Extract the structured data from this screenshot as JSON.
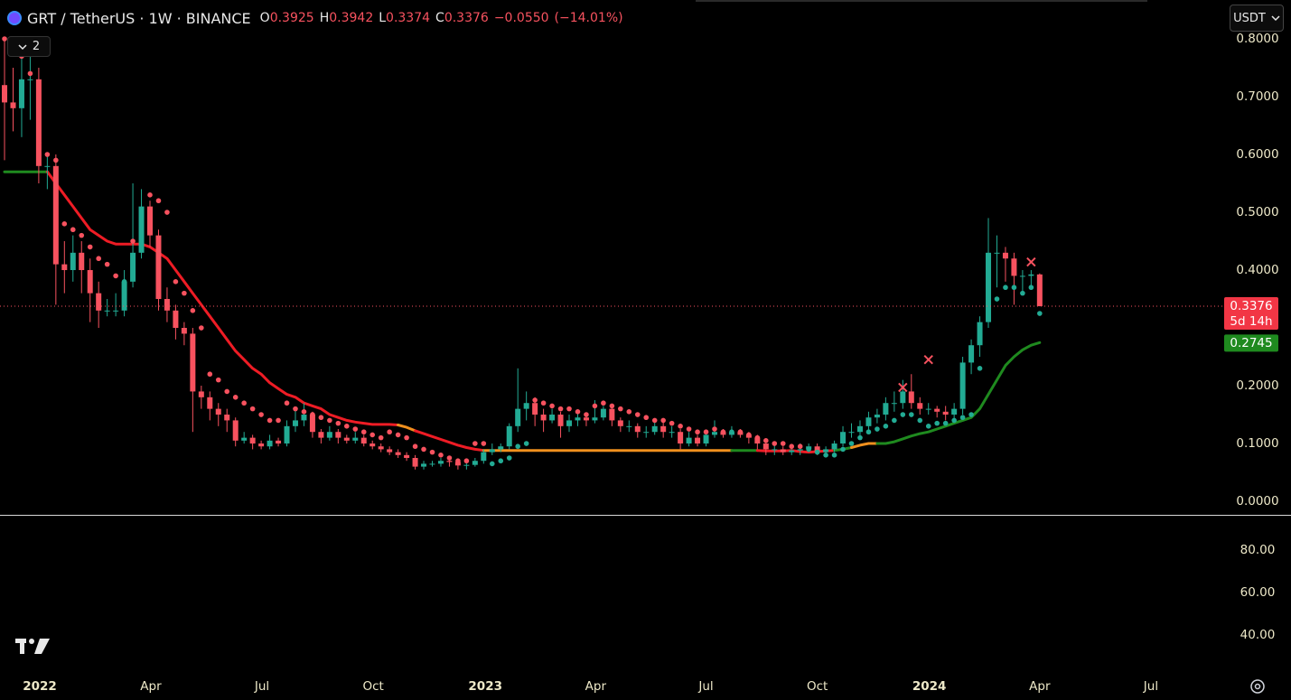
{
  "header": {
    "symbol": "GRT / TetherUS · 1W · BINANCE",
    "ohlc_keys": [
      "O",
      "H",
      "L",
      "C"
    ],
    "change": "−0.0550",
    "change_pct": "(−14.01%)"
  },
  "toolbar": {
    "indicators_count": "2",
    "currency": "USDT"
  },
  "chart_data": [
    {
      "type": "candlestick",
      "up_color": "#22ab94",
      "down_color": "#f7525f",
      "xlim": [
        -0.53,
        142.56
      ],
      "xticks": [
        {
          "value": 4.12,
          "label": "2022"
        },
        {
          "value": 17.1,
          "label": "Apr"
        },
        {
          "value": 30.1,
          "label": "Jul"
        },
        {
          "value": 43.1,
          "label": "Oct"
        },
        {
          "value": 56.2,
          "label": "2023"
        },
        {
          "value": 69.1,
          "label": "Apr"
        },
        {
          "value": 82.0,
          "label": "Jul"
        },
        {
          "value": 95.0,
          "label": "Oct"
        },
        {
          "value": 108.1,
          "label": "2024"
        },
        {
          "value": 121.0,
          "label": "Apr"
        },
        {
          "value": 134.0,
          "label": "Jul"
        }
      ],
      "ylim": [
        -0.0234,
        0.8672
      ],
      "yticks": [
        {
          "value": 0,
          "label": "0.0000"
        },
        {
          "value": 0.1,
          "label": "0.1000"
        },
        {
          "value": 0.2,
          "label": "0.2000"
        },
        {
          "value": 0.4,
          "label": "0.4000"
        },
        {
          "value": 0.5,
          "label": "0.5000"
        },
        {
          "value": 0.6,
          "label": "0.6000"
        },
        {
          "value": 0.7,
          "label": "0.7000"
        },
        {
          "value": 0.8,
          "label": "0.8000"
        }
      ],
      "grid": false,
      "open": [
        0.72,
        0.69,
        0.68,
        0.73,
        0.73,
        0.58,
        0.58,
        0.41,
        0.4,
        0.43,
        0.4,
        0.36,
        0.33,
        0.33,
        0.33,
        0.38,
        0.43,
        0.51,
        0.46,
        0.35,
        0.33,
        0.3,
        0.29,
        0.19,
        0.18,
        0.16,
        0.15,
        0.14,
        0.105,
        0.11,
        0.1,
        0.095,
        0.105,
        0.1,
        0.13,
        0.14,
        0.15,
        0.12,
        0.11,
        0.12,
        0.11,
        0.105,
        0.11,
        0.1,
        0.095,
        0.09,
        0.085,
        0.08,
        0.075,
        0.06,
        0.065,
        0.065,
        0.07,
        0.068,
        0.062,
        0.063,
        0.07,
        0.085,
        0.09,
        0.095,
        0.13,
        0.16,
        0.17,
        0.15,
        0.14,
        0.15,
        0.13,
        0.14,
        0.145,
        0.14,
        0.145,
        0.16,
        0.14,
        0.13,
        0.13,
        0.12,
        0.12,
        0.13,
        0.12,
        0.12,
        0.1,
        0.11,
        0.1,
        0.115,
        0.12,
        0.115,
        0.12,
        0.115,
        0.11,
        0.1,
        0.09,
        0.09,
        0.085,
        0.088,
        0.09,
        0.095,
        0.085,
        0.09,
        0.1,
        0.12,
        0.12,
        0.13,
        0.145,
        0.15,
        0.17,
        0.17,
        0.19,
        0.17,
        0.16,
        0.16,
        0.155,
        0.15,
        0.16,
        0.24,
        0.27,
        0.31,
        0.43,
        0.43,
        0.42,
        0.39,
        0.39,
        0.3925
      ],
      "high": [
        0.8,
        0.75,
        0.8,
        0.78,
        0.75,
        0.6,
        0.6,
        0.45,
        0.46,
        0.45,
        0.42,
        0.38,
        0.35,
        0.36,
        0.4,
        0.55,
        0.54,
        0.52,
        0.47,
        0.37,
        0.34,
        0.31,
        0.3,
        0.2,
        0.19,
        0.17,
        0.16,
        0.145,
        0.12,
        0.115,
        0.105,
        0.115,
        0.11,
        0.14,
        0.16,
        0.17,
        0.155,
        0.125,
        0.13,
        0.125,
        0.115,
        0.12,
        0.115,
        0.105,
        0.1,
        0.095,
        0.09,
        0.085,
        0.08,
        0.07,
        0.07,
        0.075,
        0.075,
        0.07,
        0.068,
        0.075,
        0.09,
        0.1,
        0.1,
        0.135,
        0.23,
        0.19,
        0.18,
        0.16,
        0.16,
        0.155,
        0.15,
        0.155,
        0.15,
        0.175,
        0.165,
        0.165,
        0.145,
        0.14,
        0.135,
        0.13,
        0.14,
        0.14,
        0.13,
        0.125,
        0.12,
        0.115,
        0.12,
        0.14,
        0.125,
        0.13,
        0.125,
        0.12,
        0.115,
        0.105,
        0.1,
        0.095,
        0.095,
        0.1,
        0.1,
        0.1,
        0.095,
        0.105,
        0.13,
        0.135,
        0.14,
        0.155,
        0.16,
        0.18,
        0.19,
        0.21,
        0.22,
        0.18,
        0.17,
        0.165,
        0.165,
        0.17,
        0.25,
        0.28,
        0.32,
        0.49,
        0.46,
        0.44,
        0.43,
        0.4,
        0.4,
        0.3942
      ],
      "low": [
        0.59,
        0.64,
        0.63,
        0.66,
        0.55,
        0.54,
        0.34,
        0.36,
        0.38,
        0.36,
        0.31,
        0.3,
        0.32,
        0.32,
        0.32,
        0.37,
        0.42,
        0.44,
        0.33,
        0.31,
        0.28,
        0.27,
        0.12,
        0.16,
        0.14,
        0.13,
        0.12,
        0.095,
        0.1,
        0.09,
        0.09,
        0.09,
        0.095,
        0.095,
        0.12,
        0.13,
        0.11,
        0.1,
        0.105,
        0.1,
        0.1,
        0.1,
        0.095,
        0.09,
        0.085,
        0.08,
        0.075,
        0.07,
        0.055,
        0.055,
        0.06,
        0.06,
        0.06,
        0.055,
        0.055,
        0.06,
        0.065,
        0.08,
        0.085,
        0.09,
        0.12,
        0.14,
        0.13,
        0.12,
        0.135,
        0.11,
        0.12,
        0.13,
        0.13,
        0.135,
        0.14,
        0.13,
        0.12,
        0.12,
        0.11,
        0.11,
        0.115,
        0.11,
        0.11,
        0.09,
        0.095,
        0.095,
        0.095,
        0.11,
        0.11,
        0.11,
        0.11,
        0.1,
        0.09,
        0.08,
        0.08,
        0.08,
        0.08,
        0.08,
        0.085,
        0.08,
        0.08,
        0.085,
        0.095,
        0.11,
        0.11,
        0.12,
        0.135,
        0.14,
        0.155,
        0.16,
        0.16,
        0.15,
        0.15,
        0.145,
        0.14,
        0.14,
        0.15,
        0.22,
        0.25,
        0.3,
        0.37,
        0.38,
        0.34,
        0.36,
        0.37,
        0.3374
      ],
      "close": [
        0.69,
        0.68,
        0.73,
        0.73,
        0.58,
        0.58,
        0.41,
        0.4,
        0.43,
        0.4,
        0.36,
        0.33,
        0.33,
        0.33,
        0.38,
        0.43,
        0.51,
        0.46,
        0.35,
        0.33,
        0.3,
        0.29,
        0.19,
        0.18,
        0.16,
        0.15,
        0.14,
        0.105,
        0.11,
        0.1,
        0.095,
        0.105,
        0.1,
        0.13,
        0.14,
        0.15,
        0.12,
        0.11,
        0.12,
        0.11,
        0.105,
        0.11,
        0.1,
        0.095,
        0.09,
        0.085,
        0.08,
        0.075,
        0.06,
        0.065,
        0.065,
        0.07,
        0.068,
        0.062,
        0.063,
        0.07,
        0.085,
        0.09,
        0.095,
        0.13,
        0.16,
        0.17,
        0.15,
        0.14,
        0.15,
        0.13,
        0.14,
        0.145,
        0.14,
        0.145,
        0.16,
        0.14,
        0.13,
        0.13,
        0.12,
        0.12,
        0.13,
        0.12,
        0.12,
        0.1,
        0.11,
        0.1,
        0.115,
        0.12,
        0.115,
        0.12,
        0.115,
        0.11,
        0.1,
        0.09,
        0.09,
        0.085,
        0.088,
        0.09,
        0.095,
        0.085,
        0.09,
        0.1,
        0.12,
        0.12,
        0.13,
        0.145,
        0.15,
        0.17,
        0.17,
        0.19,
        0.17,
        0.16,
        0.16,
        0.155,
        0.15,
        0.16,
        0.24,
        0.27,
        0.31,
        0.43,
        0.43,
        0.42,
        0.39,
        0.39,
        0.3925,
        0.3376
      ],
      "countdown": "5d 14h",
      "ma": {
        "width": 3,
        "values": [
          0.57,
          0.57,
          0.57,
          0.57,
          0.57,
          0.57,
          0.55,
          0.53,
          0.51,
          0.49,
          0.47,
          0.46,
          0.45,
          0.445,
          0.445,
          0.445,
          0.445,
          0.44,
          0.43,
          0.42,
          0.4,
          0.38,
          0.36,
          0.34,
          0.32,
          0.3,
          0.28,
          0.26,
          0.245,
          0.23,
          0.22,
          0.205,
          0.195,
          0.185,
          0.18,
          0.17,
          0.165,
          0.16,
          0.15,
          0.145,
          0.14,
          0.137,
          0.135,
          0.133,
          0.133,
          0.133,
          0.132,
          0.128,
          0.122,
          0.117,
          0.112,
          0.107,
          0.102,
          0.097,
          0.093,
          0.09,
          0.088,
          0.088,
          0.088,
          0.088,
          0.088,
          0.088,
          0.088,
          0.088,
          0.088,
          0.088,
          0.088,
          0.088,
          0.088,
          0.088,
          0.088,
          0.088,
          0.088,
          0.088,
          0.088,
          0.088,
          0.088,
          0.088,
          0.088,
          0.088,
          0.088,
          0.088,
          0.088,
          0.088,
          0.088,
          0.088,
          0.088,
          0.088,
          0.088,
          0.087,
          0.087,
          0.087,
          0.088,
          0.086,
          0.085,
          0.086,
          0.087,
          0.088,
          0.09,
          0.093,
          0.097,
          0.1,
          0.1,
          0.1,
          0.103,
          0.108,
          0.113,
          0.117,
          0.12,
          0.125,
          0.13,
          0.135,
          0.14,
          0.145,
          0.16,
          0.185,
          0.21,
          0.235,
          0.25,
          0.262,
          0.27,
          0.2745
        ],
        "segments": [
          {
            "start": 0,
            "color": "#1f8a1f"
          },
          {
            "start": 5,
            "color": "#ee1c25"
          },
          {
            "start": 46,
            "color": "#f0901e"
          },
          {
            "start": 48,
            "color": "#ee1c25"
          },
          {
            "start": 56,
            "color": "#f0901e"
          },
          {
            "start": 85,
            "color": "#1f8a1f"
          },
          {
            "start": 88,
            "color": "#ee1c25"
          },
          {
            "start": 97,
            "color": "#1f8a1f"
          },
          {
            "start": 99,
            "color": "#f0901e"
          },
          {
            "start": 102,
            "color": "#1f8a1f"
          }
        ],
        "label_color": "#1f8a1f"
      },
      "sar": {
        "above_color": "#f7525f",
        "below_color": "#22ab94",
        "values": [
          0.8,
          0.79,
          0.77,
          0.74,
          0.62,
          0.6,
          0.59,
          0.48,
          0.47,
          0.46,
          0.44,
          0.42,
          0.41,
          0.39,
          0.38,
          0.45,
          0.45,
          0.53,
          0.52,
          0.5,
          0.38,
          0.36,
          0.33,
          0.3,
          0.22,
          0.21,
          0.19,
          0.18,
          0.17,
          0.16,
          0.15,
          0.14,
          0.14,
          0.17,
          0.16,
          0.155,
          0.15,
          0.145,
          0.14,
          0.135,
          0.13,
          0.125,
          0.12,
          0.115,
          0.11,
          0.12,
          0.115,
          0.11,
          0.095,
          0.09,
          0.085,
          0.08,
          0.075,
          0.07,
          0.07,
          0.1,
          0.1,
          0.065,
          0.07,
          0.075,
          0.095,
          0.1,
          0.175,
          0.17,
          0.165,
          0.16,
          0.16,
          0.155,
          0.15,
          0.165,
          0.17,
          0.165,
          0.16,
          0.155,
          0.15,
          0.145,
          0.14,
          0.14,
          0.135,
          0.13,
          0.125,
          0.12,
          0.12,
          0.125,
          0.12,
          0.12,
          0.12,
          0.115,
          0.11,
          0.105,
          0.1,
          0.1,
          0.095,
          0.095,
          0.09,
          0.085,
          0.08,
          0.08,
          0.09,
          0.1,
          0.11,
          0.12,
          0.125,
          0.13,
          0.14,
          0.15,
          0.15,
          0.14,
          0.13,
          0.135,
          0.135,
          0.14,
          0.145,
          0.15,
          0.23,
          0.35,
          0.35,
          0.37,
          0.37,
          0.36,
          0.37,
          0.325
        ]
      },
      "signals": {
        "color": "#f7525f",
        "x": [
          105,
          108,
          120
        ],
        "values": [
          0.197,
          0.245,
          0.414
        ]
      }
    },
    {
      "type": "indicator-pane",
      "ylim": [
        22.13,
        96.17
      ],
      "yticks": [
        {
          "value": 40,
          "label": "40.00"
        },
        {
          "value": 60,
          "label": "60.00"
        },
        {
          "value": 80,
          "label": "80.00"
        }
      ]
    }
  ]
}
